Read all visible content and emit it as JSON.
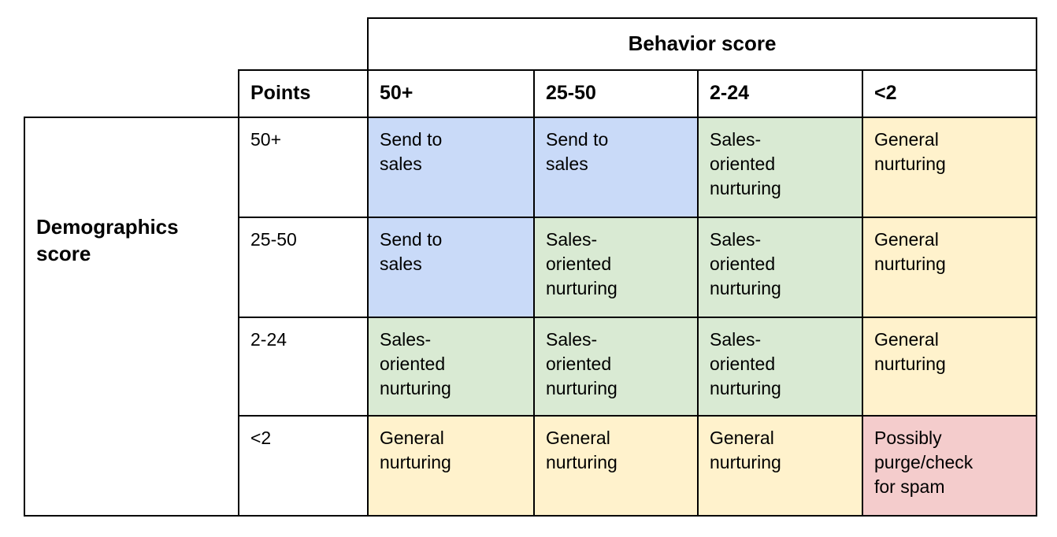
{
  "colors": {
    "blue": "#c9daf8",
    "green": "#d9ead3",
    "yellow": "#fff2cc",
    "red": "#f4cccc",
    "border": "#000000"
  },
  "matrix": {
    "column_group_header": "Behavior score",
    "row_group_header": "Demographics\nscore",
    "corner_header": "Points",
    "column_headers": [
      "50+",
      "25-50",
      "2-24",
      "<2"
    ],
    "rows": [
      {
        "label": "50+",
        "cells": [
          {
            "text": "Send to\nsales",
            "color": "blue"
          },
          {
            "text": "Send to\nsales",
            "color": "blue"
          },
          {
            "text": "Sales-\noriented\nnurturing",
            "color": "green"
          },
          {
            "text": "General\nnurturing",
            "color": "yellow"
          }
        ]
      },
      {
        "label": "25-50",
        "cells": [
          {
            "text": "Send to\nsales",
            "color": "blue"
          },
          {
            "text": "Sales-\noriented\nnurturing",
            "color": "green"
          },
          {
            "text": "Sales-\noriented\nnurturing",
            "color": "green"
          },
          {
            "text": "General\nnurturing",
            "color": "yellow"
          }
        ]
      },
      {
        "label": "2-24",
        "cells": [
          {
            "text": "Sales-\noriented\nnurturing",
            "color": "green"
          },
          {
            "text": "Sales-\noriented\nnurturing",
            "color": "green"
          },
          {
            "text": "Sales-\noriented\nnurturing",
            "color": "green"
          },
          {
            "text": "General\nnurturing",
            "color": "yellow"
          }
        ]
      },
      {
        "label": "<2",
        "cells": [
          {
            "text": "General\nnurturing",
            "color": "yellow"
          },
          {
            "text": "General\nnurturing",
            "color": "yellow"
          },
          {
            "text": "General\nnurturing",
            "color": "yellow"
          },
          {
            "text": "Possibly\npurge/check\nfor spam",
            "color": "red"
          }
        ]
      }
    ]
  }
}
